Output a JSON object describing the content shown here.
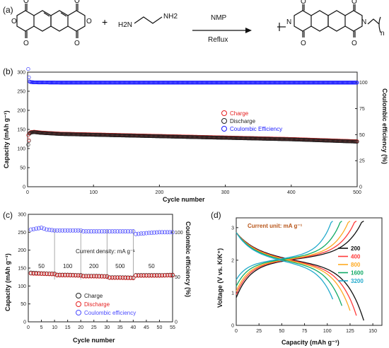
{
  "panels": {
    "a": "(a)",
    "b": "(b)",
    "c": "(c)",
    "d": "(d)"
  },
  "reaction": {
    "plus": "+",
    "amine_left": "H2N",
    "amine_right": "NH2",
    "solvent": "NMP",
    "condition": "Reflux",
    "subscript_n": "n",
    "atom_o": "O",
    "atom_n": "N"
  },
  "chart_data": [
    {
      "id": "b",
      "type": "scatter",
      "xlabel": "Cycle number",
      "ylabel": "Capacity (mAh g⁻¹)",
      "y2label": "Coulombic efficiency (%)",
      "xlim": [
        0,
        500
      ],
      "ylim": [
        0,
        300
      ],
      "y2lim": [
        0,
        110
      ],
      "xticks": [
        "0",
        "100",
        "200",
        "300",
        "400",
        "500"
      ],
      "yticks": [
        "0",
        "50",
        "100",
        "150",
        "200",
        "250",
        "300"
      ],
      "y2ticks": [
        "0",
        "25",
        "50",
        "75",
        "100"
      ],
      "legend": [
        "Charge",
        "Discharge",
        "Coulombic Efficiency"
      ],
      "colors": [
        "#e52020",
        "#222222",
        "#1a1aff"
      ],
      "series": [
        {
          "name": "Charge",
          "x": [
            1,
            2,
            3,
            5,
            10,
            20,
            50,
            100,
            150,
            200,
            250,
            300,
            350,
            400,
            450,
            500
          ],
          "values": [
            135,
            122,
            140,
            143,
            144,
            142,
            139,
            137,
            135,
            133,
            131,
            129,
            127,
            125,
            122,
            119
          ]
        },
        {
          "name": "Discharge",
          "x": [
            1,
            2,
            3,
            5,
            10,
            20,
            50,
            100,
            150,
            200,
            250,
            300,
            350,
            400,
            450,
            500
          ],
          "values": [
            110,
            120,
            139,
            142,
            143,
            141,
            138,
            136,
            134,
            132,
            130,
            128,
            126,
            124,
            121,
            118
          ]
        },
        {
          "name": "Coulombic Efficiency",
          "x": [
            1,
            2,
            3,
            5,
            10,
            50,
            100,
            200,
            300,
            400,
            500
          ],
          "values": [
            113,
            105,
            101,
            100.5,
            100.2,
            100,
            100,
            100,
            100,
            100,
            100
          ]
        }
      ]
    },
    {
      "id": "c",
      "type": "scatter",
      "xlabel": "Cycle number",
      "ylabel": "Capacity (mAh g⁻¹)",
      "y2label": "Coulombic efficiency (%)",
      "xlim": [
        0,
        55
      ],
      "ylim": [
        0,
        300
      ],
      "y2lim": [
        0,
        120
      ],
      "xticks": [
        "0",
        "5",
        "10",
        "15",
        "20",
        "25",
        "30",
        "35",
        "40",
        "45",
        "50",
        "55"
      ],
      "yticks": [
        "0",
        "50",
        "100",
        "150",
        "200",
        "250",
        "300"
      ],
      "y2ticks": [
        "0",
        "50",
        "100"
      ],
      "annotation": "Current density: mA g⁻¹",
      "rate_labels": [
        "50",
        "100",
        "200",
        "500",
        "50"
      ],
      "legend": [
        "Charge",
        "Discharge",
        "Coulombic efficiency"
      ],
      "colors": [
        "#222222",
        "#e52020",
        "#4a4aff"
      ],
      "series": [
        {
          "name": "Charge",
          "x": [
            1,
            5,
            10,
            11,
            15,
            20,
            21,
            25,
            30,
            31,
            35,
            40,
            41,
            45,
            50,
            55
          ],
          "values": [
            137,
            135,
            134,
            131,
            131,
            130,
            128,
            128,
            127,
            124,
            124,
            123,
            130,
            130,
            130,
            131
          ]
        },
        {
          "name": "Discharge",
          "x": [
            1,
            5,
            10,
            11,
            15,
            20,
            21,
            25,
            30,
            31,
            35,
            40,
            41,
            45,
            50,
            55
          ],
          "values": [
            135,
            134,
            133,
            130,
            130,
            129,
            127,
            127,
            126,
            123,
            123,
            122,
            129,
            129,
            129,
            130
          ]
        },
        {
          "name": "Coulombic efficiency",
          "x": [
            1,
            3,
            5,
            7,
            10,
            11,
            20,
            21,
            30,
            31,
            40,
            41,
            45,
            50,
            55
          ],
          "values": [
            103,
            104,
            105,
            103,
            102,
            102,
            102,
            101,
            101,
            101,
            101,
            98,
            99,
            100,
            100
          ]
        }
      ]
    },
    {
      "id": "d",
      "type": "line",
      "xlabel": "Capacity (mAh g⁻¹)",
      "ylabel": "Voltage (V vs. K/K⁺)",
      "xlim": [
        0,
        160
      ],
      "ylim": [
        0,
        3.3
      ],
      "xticks": [
        "0",
        "25",
        "50",
        "75",
        "100",
        "125",
        "150"
      ],
      "yticks": [
        "0",
        "1",
        "2",
        "3"
      ],
      "annotation": "Current unit: mA g⁻¹",
      "series": [
        {
          "name": "200",
          "color": "#111111",
          "cap": 140,
          "charge_start": 0.85,
          "discharge_end": 0.1
        },
        {
          "name": "400",
          "color": "#ff3b3b",
          "cap": 132,
          "charge_start": 0.95,
          "discharge_end": 0.25
        },
        {
          "name": "800",
          "color": "#ffaa22",
          "cap": 125,
          "charge_start": 1.05,
          "discharge_end": 0.4
        },
        {
          "name": "1600",
          "color": "#11aa66",
          "cap": 116,
          "charge_start": 1.2,
          "discharge_end": 0.55
        },
        {
          "name": "3200",
          "color": "#22aacc",
          "cap": 106,
          "charge_start": 1.4,
          "discharge_end": 0.75
        }
      ]
    }
  ]
}
